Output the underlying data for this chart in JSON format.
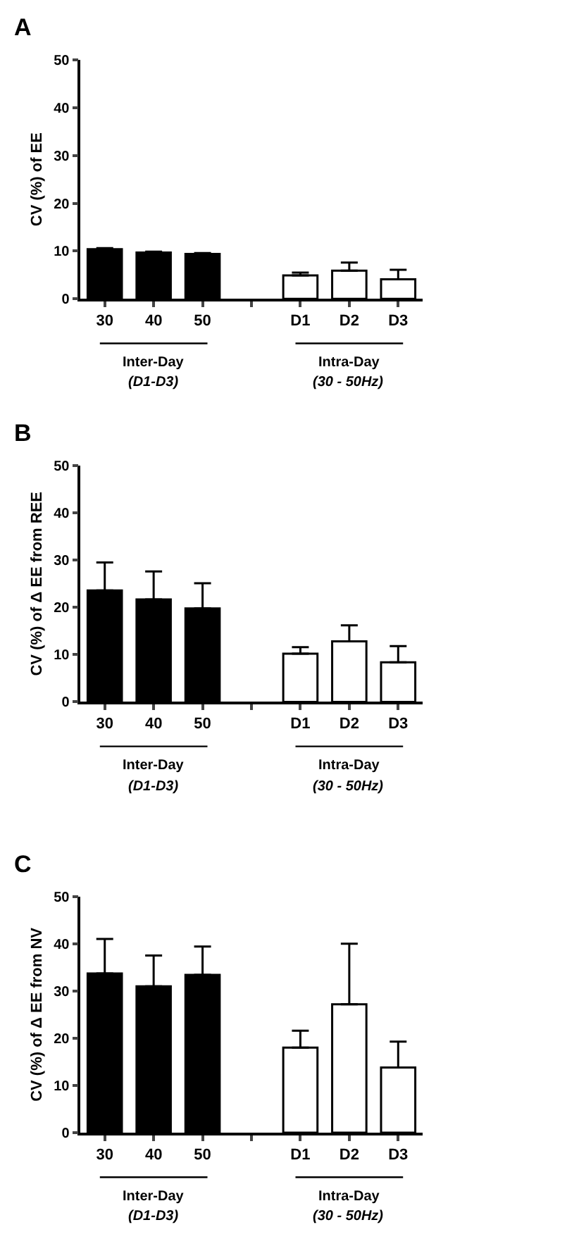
{
  "chart_data": [
    {
      "type": "bar",
      "title": "A",
      "ylabel": "CV (%) of EE",
      "categories": [
        "30",
        "40",
        "50",
        null,
        "D1",
        "D2",
        "D3"
      ],
      "values": [
        10.4,
        9.7,
        9.4,
        null,
        4.9,
        5.9,
        4.1
      ],
      "errors": [
        [
          10.4,
          10.6
        ],
        [
          9.7,
          9.9
        ],
        [
          9.4,
          9.6
        ],
        null,
        [
          4.9,
          5.5
        ],
        [
          5.9,
          7.6
        ],
        [
          4.1,
          6.1
        ]
      ],
      "colors": [
        "#000000",
        "#000000",
        "#000000",
        null,
        "#ffffff",
        "#ffffff",
        "#ffffff"
      ],
      "ylim": [
        0,
        50
      ],
      "yticks": [
        0,
        10,
        20,
        30,
        40,
        50
      ],
      "legend": false,
      "annotations": [
        "Inter-Day",
        "(D1-D3)",
        "Intra-Day",
        "(30 - 50Hz)"
      ]
    },
    {
      "type": "bar",
      "title": "B",
      "ylabel": "CV (%) of Δ EE from REE",
      "categories": [
        "30",
        "40",
        "50",
        null,
        "D1",
        "D2",
        "D3"
      ],
      "values": [
        23.6,
        21.7,
        19.8,
        null,
        10.2,
        12.8,
        8.4
      ],
      "errors": [
        [
          23.6,
          29.5
        ],
        [
          21.7,
          27.6
        ],
        [
          19.8,
          25.1
        ],
        null,
        [
          10.2,
          11.6
        ],
        [
          12.8,
          16.2
        ],
        [
          8.4,
          11.8
        ]
      ],
      "colors": [
        "#000000",
        "#000000",
        "#000000",
        null,
        "#ffffff",
        "#ffffff",
        "#ffffff"
      ],
      "ylim": [
        0,
        50
      ],
      "yticks": [
        0,
        10,
        20,
        30,
        40,
        50
      ],
      "legend": false,
      "annotations": [
        "Inter-Day",
        "(D1-D3)",
        "Intra-Day",
        "(30 - 50Hz)"
      ]
    },
    {
      "type": "bar",
      "title": "C",
      "ylabel": "CV (%) of Δ EE from NV",
      "categories": [
        "30",
        "40",
        "50",
        null,
        "D1",
        "D2",
        "D3"
      ],
      "values": [
        33.7,
        31.0,
        33.4,
        null,
        18.0,
        27.2,
        13.8
      ],
      "errors": [
        [
          33.7,
          41.0
        ],
        [
          31.0,
          37.5
        ],
        [
          33.4,
          39.4
        ],
        null,
        [
          18.0,
          21.6
        ],
        [
          27.2,
          40.0
        ],
        [
          13.8,
          19.3
        ]
      ],
      "colors": [
        "#000000",
        "#000000",
        "#000000",
        null,
        "#ffffff",
        "#ffffff",
        "#ffffff"
      ],
      "ylim": [
        0,
        50
      ],
      "yticks": [
        0,
        10,
        20,
        30,
        40,
        50
      ],
      "legend": false,
      "annotations": [
        "Inter-Day",
        "(D1-D3)",
        "Intra-Day",
        "(30 - 50Hz)"
      ]
    }
  ]
}
